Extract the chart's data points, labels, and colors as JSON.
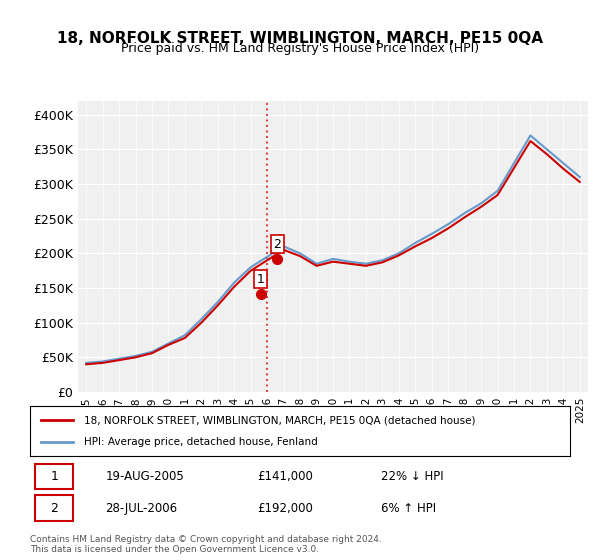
{
  "title": "18, NORFOLK STREET, WIMBLINGTON, MARCH, PE15 0QA",
  "subtitle": "Price paid vs. HM Land Registry's House Price Index (HPI)",
  "ylabel_ticks": [
    "£0",
    "£50K",
    "£100K",
    "£150K",
    "£200K",
    "£250K",
    "£300K",
    "£350K",
    "£400K"
  ],
  "ytick_values": [
    0,
    50000,
    100000,
    150000,
    200000,
    250000,
    300000,
    350000,
    400000
  ],
  "ylim": [
    0,
    420000
  ],
  "legend1": "18, NORFOLK STREET, WIMBLINGTON, MARCH, PE15 0QA (detached house)",
  "legend2": "HPI: Average price, detached house, Fenland",
  "sale1_date": "19-AUG-2005",
  "sale1_price": 141000,
  "sale1_label": "22% ↓ HPI",
  "sale2_date": "28-JUL-2006",
  "sale2_price": 192000,
  "sale2_label": "6% ↑ HPI",
  "footer": "Contains HM Land Registry data © Crown copyright and database right 2024.\nThis data is licensed under the Open Government Licence v3.0.",
  "line1_color": "#cc0000",
  "line2_color": "#6699cc",
  "background_color": "#ffffff",
  "plot_bg_color": "#f0f0f0",
  "years": [
    1995,
    1996,
    1997,
    1998,
    1999,
    2000,
    2001,
    2002,
    2003,
    2004,
    2005,
    2006,
    2007,
    2008,
    2009,
    2010,
    2011,
    2012,
    2013,
    2014,
    2015,
    2016,
    2017,
    2018,
    2019,
    2020,
    2021,
    2022,
    2023,
    2024,
    2025
  ],
  "hpi_values": [
    42000,
    44000,
    48000,
    52000,
    58000,
    70000,
    82000,
    105000,
    130000,
    158000,
    180000,
    195000,
    210000,
    200000,
    185000,
    192000,
    188000,
    185000,
    190000,
    200000,
    215000,
    228000,
    242000,
    258000,
    272000,
    290000,
    330000,
    370000,
    350000,
    330000,
    310000
  ],
  "price_values": [
    40000,
    42000,
    46000,
    50000,
    56000,
    68000,
    78000,
    100000,
    125000,
    152000,
    175000,
    190000,
    205000,
    196000,
    182000,
    188000,
    185000,
    182000,
    187000,
    197000,
    210000,
    222000,
    236000,
    252000,
    267000,
    284000,
    323000,
    362000,
    343000,
    322000,
    303000
  ],
  "sale1_x": 2005.6,
  "sale2_x": 2006.6,
  "vline_x": 2006.0
}
